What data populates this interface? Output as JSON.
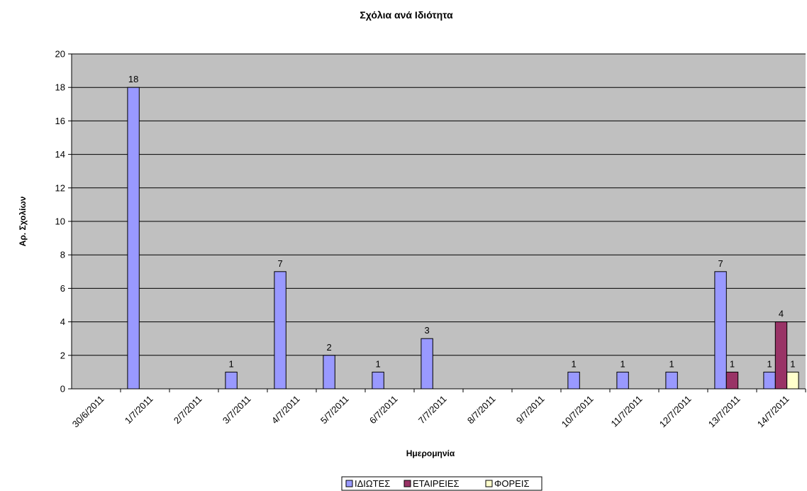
{
  "chart_data": {
    "type": "bar",
    "title": "Σχόλια ανά Ιδιότητα",
    "xlabel": "Ημερομηνία",
    "ylabel": "Αρ. Σχολίων",
    "ylim": [
      0,
      20
    ],
    "yticks": [
      0,
      2,
      4,
      6,
      8,
      10,
      12,
      14,
      16,
      18,
      20
    ],
    "categories": [
      "30/6/2011",
      "1/7/2011",
      "2/7/2011",
      "3/7/2011",
      "4/7/2011",
      "5/7/2011",
      "6/7/2011",
      "7/7/2011",
      "8/7/2011",
      "9/7/2011",
      "10/7/2011",
      "11/7/2011",
      "12/7/2011",
      "13/7/2011",
      "14/7/2011"
    ],
    "series": [
      {
        "name": "ΙΔΙΩΤΕΣ",
        "color": "#9999ff",
        "values": [
          0,
          18,
          0,
          1,
          7,
          2,
          1,
          3,
          0,
          0,
          1,
          1,
          1,
          7,
          1
        ]
      },
      {
        "name": "ΕΤΑΙΡΕΙΕΣ",
        "color": "#993366",
        "values": [
          0,
          0,
          0,
          0,
          0,
          0,
          0,
          0,
          0,
          0,
          0,
          0,
          0,
          1,
          4
        ]
      },
      {
        "name": "ΦΟΡΕΙΣ",
        "color": "#ffffcc",
        "values": [
          0,
          0,
          0,
          0,
          0,
          0,
          0,
          0,
          0,
          0,
          0,
          0,
          0,
          0,
          1
        ]
      }
    ],
    "plot_background": "#c0c0c0",
    "grid": true,
    "legend_position": "bottom"
  }
}
